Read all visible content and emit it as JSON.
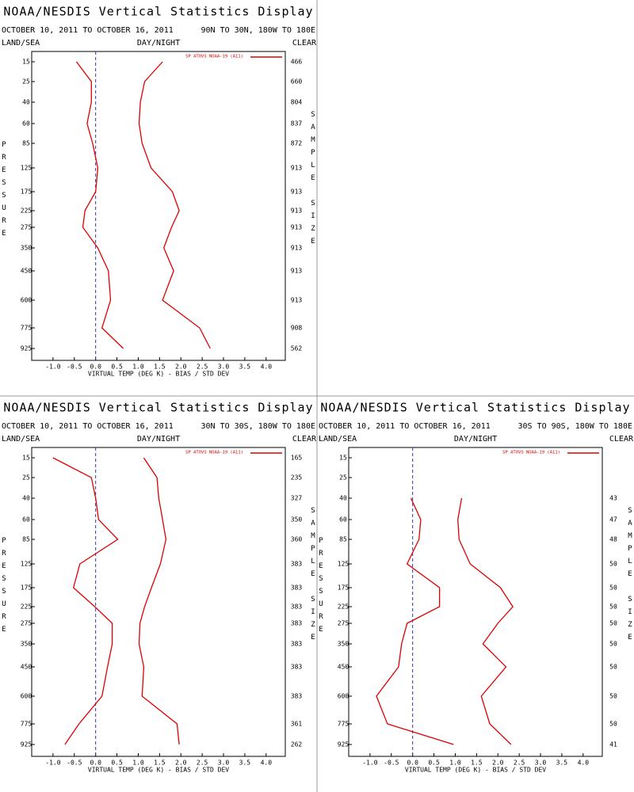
{
  "chart_data": [
    {
      "type": "line",
      "title": "NOAA/NESDIS Vertical Statistics Display",
      "date_range": "OCTOBER 10, 2011 TO OCTOBER 16, 2011",
      "region": "90N TO 30N, 180W TO 180E",
      "left_header": "LAND/SEA",
      "center_header": "DAY/NIGHT",
      "right_header": "CLEAR",
      "x_label": "VIRTUAL TEMP (DEG K) - BIAS / STD DEV",
      "y_label": "PRESSURE",
      "y2_label": "SAMPLE SIZE",
      "levels": [
        15,
        25,
        40,
        60,
        85,
        125,
        175,
        225,
        275,
        350,
        450,
        600,
        775,
        925
      ],
      "sample_size": [
        466,
        660,
        804,
        837,
        872,
        913,
        913,
        913,
        913,
        913,
        913,
        913,
        908,
        562
      ],
      "series": [
        {
          "name": "SP ATOVS NOAA-19 (A11)",
          "color": "#dd0000",
          "bias": [
            -0.45,
            -0.1,
            -0.1,
            -0.2,
            -0.07,
            0.05,
            0,
            -0.25,
            -0.3,
            0.05,
            0.3,
            0.35,
            0.15,
            0.65
          ],
          "std_dev": [
            1.57,
            1.15,
            1.05,
            1.02,
            1.09,
            1.3,
            1.8,
            1.96,
            1.78,
            1.6,
            1.83,
            1.57,
            2.44,
            2.69
          ]
        }
      ],
      "xlim": [
        -1.5,
        4.45
      ],
      "xticks": [
        {
          "value": -1,
          "label": "-1.0"
        },
        {
          "value": -0.5,
          "label": "-0.5"
        },
        {
          "value": 0,
          "label": "0.0"
        },
        {
          "value": 0.5,
          "label": "0.5"
        },
        {
          "value": 1,
          "label": "1.0"
        },
        {
          "value": 1.5,
          "label": "1.5"
        },
        {
          "value": 2,
          "label": "2.0"
        },
        {
          "value": 2.5,
          "label": "2.5"
        },
        {
          "value": 3,
          "label": "3.0"
        },
        {
          "value": 3.5,
          "label": "3.5"
        },
        {
          "value": 4,
          "label": "4.0"
        }
      ]
    },
    {
      "type": "line",
      "title": "NOAA/NESDIS Vertical Statistics Display",
      "date_range": "OCTOBER 10, 2011 TO OCTOBER 16, 2011",
      "region": "30N TO 30S, 180W TO 180E",
      "left_header": "LAND/SEA",
      "center_header": "DAY/NIGHT",
      "right_header": "CLEAR",
      "x_label": "VIRTUAL TEMP (DEG K) - BIAS / STD DEV",
      "y_label": "PRESSURE",
      "y2_label": "SAMPLE SIZE",
      "levels": [
        15,
        25,
        40,
        60,
        85,
        125,
        175,
        225,
        275,
        350,
        450,
        600,
        775,
        925
      ],
      "sample_size": [
        165,
        235,
        327,
        350,
        360,
        383,
        383,
        383,
        383,
        383,
        383,
        383,
        361,
        262
      ],
      "series": [
        {
          "name": "SP ATOVS NOAA-19 (A11)",
          "color": "#dd0000",
          "bias": [
            -1.0,
            -0.1,
            0,
            0.07,
            0.52,
            -0.37,
            -0.52,
            -0.02,
            0.39,
            0.39,
            0.28,
            0.15,
            -0.39,
            -0.72
          ],
          "std_dev": [
            1.13,
            1.44,
            1.48,
            1.57,
            1.65,
            1.52,
            1.31,
            1.15,
            1.04,
            1.02,
            1.13,
            1.09,
            1.91,
            1.96
          ]
        }
      ],
      "xlim": [
        -1.5,
        4.45
      ],
      "xticks": [
        {
          "value": -1,
          "label": "-1.0"
        },
        {
          "value": -0.5,
          "label": "-0.5"
        },
        {
          "value": 0,
          "label": "0.0"
        },
        {
          "value": 0.5,
          "label": "0.5"
        },
        {
          "value": 1,
          "label": "1.0"
        },
        {
          "value": 1.5,
          "label": "1.5"
        },
        {
          "value": 2,
          "label": "2.0"
        },
        {
          "value": 2.5,
          "label": "2.5"
        },
        {
          "value": 3,
          "label": "3.0"
        },
        {
          "value": 3.5,
          "label": "3.5"
        },
        {
          "value": 4,
          "label": "4.0"
        }
      ]
    },
    {
      "type": "line",
      "title": "NOAA/NESDIS Vertical Statistics Display",
      "date_range": "OCTOBER 10, 2011 TO OCTOBER 16, 2011",
      "region": "30S TO 90S, 180W TO 180E",
      "left_header": "LAND/SEA",
      "center_header": "DAY/NIGHT",
      "right_header": "CLEAR",
      "x_label": "VIRTUAL TEMP (DEG K) - BIAS / STD DEV",
      "y_label": "PRESSURE",
      "y2_label": "SAMPLE SIZE",
      "levels": [
        15,
        25,
        40,
        60,
        85,
        125,
        175,
        225,
        275,
        350,
        450,
        600,
        775,
        925
      ],
      "sample_size": [
        null,
        null,
        43,
        47,
        48,
        50,
        50,
        50,
        50,
        50,
        50,
        50,
        50,
        41
      ],
      "series": [
        {
          "name": "SP ATOVS NOAA-19 (A11)",
          "color": "#dd0000",
          "bias": [
            null,
            null,
            -0.04,
            0.19,
            0.15,
            -0.13,
            0.63,
            0.63,
            -0.13,
            -0.26,
            -0.33,
            -0.85,
            -0.59,
            0.96
          ],
          "std_dev": [
            null,
            null,
            1.15,
            1.06,
            1.09,
            1.35,
            2.06,
            2.35,
            2.0,
            1.65,
            2.19,
            1.61,
            1.81,
            2.31
          ]
        }
      ],
      "xlim": [
        -1.5,
        4.45
      ],
      "xticks": [
        {
          "value": -1,
          "label": "-1.0"
        },
        {
          "value": -0.5,
          "label": "-0.5"
        },
        {
          "value": 0,
          "label": "0.0"
        },
        {
          "value": 0.5,
          "label": "0.5"
        },
        {
          "value": 1,
          "label": "1.0"
        },
        {
          "value": 1.5,
          "label": "1.5"
        },
        {
          "value": 2,
          "label": "2.0"
        },
        {
          "value": 2.5,
          "label": "2.5"
        },
        {
          "value": 3,
          "label": "3.0"
        },
        {
          "value": 3.5,
          "label": "3.5"
        },
        {
          "value": 4,
          "label": "4.0"
        }
      ]
    }
  ]
}
